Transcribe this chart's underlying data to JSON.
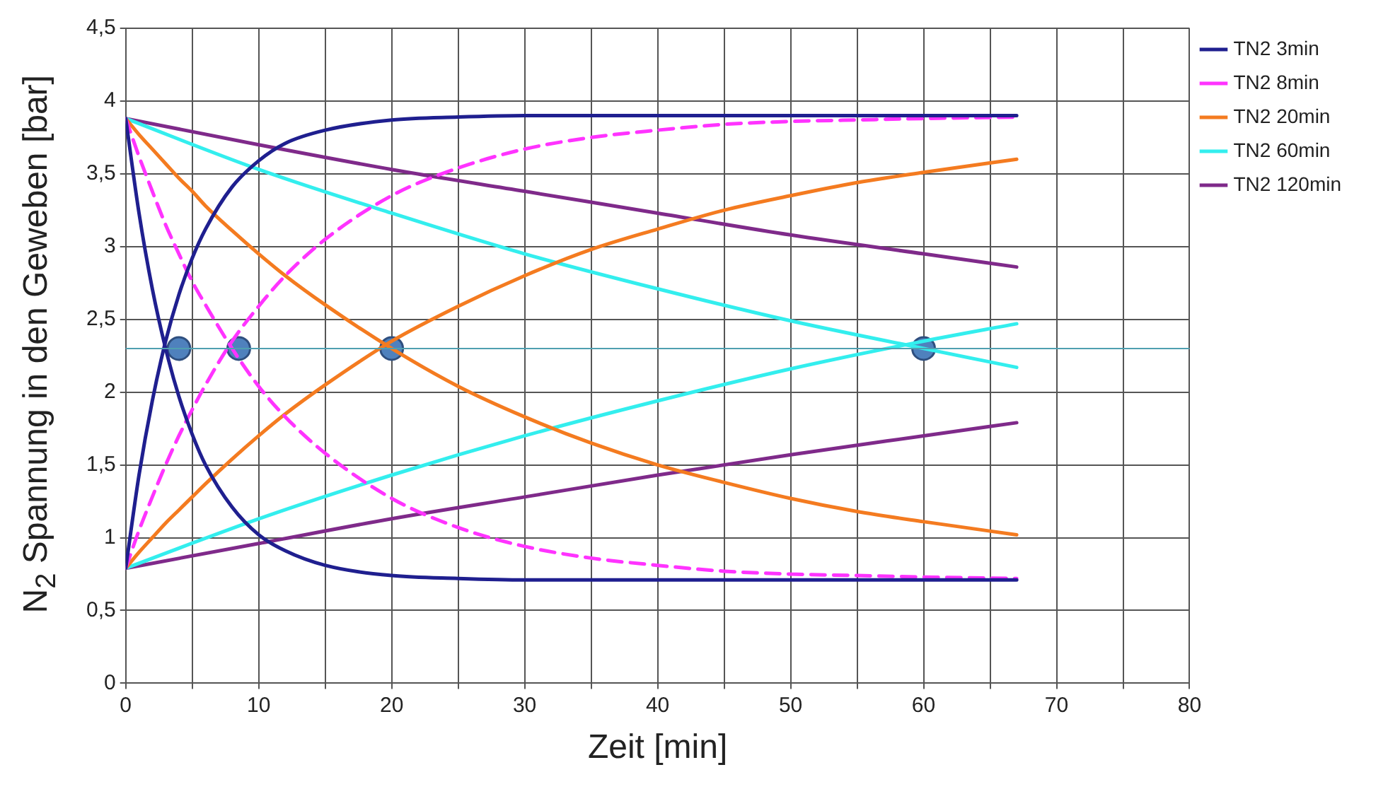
{
  "chart_data": {
    "type": "line",
    "xlabel": "Zeit [min]",
    "ylabel": "N$_{2}$ Spannung in den Geweben [bar]",
    "xlim": [
      0,
      80
    ],
    "xticks": [
      0,
      {
        "value": 5,
        "label": null
      },
      10,
      {
        "value": 15,
        "label": null
      },
      20,
      {
        "value": 25,
        "label": null
      },
      30,
      {
        "value": 35,
        "label": null
      },
      40,
      {
        "value": 45,
        "label": null
      },
      50,
      {
        "value": 55,
        "label": null
      },
      60,
      {
        "value": 65,
        "label": null
      },
      70,
      {
        "value": 75,
        "label": null
      },
      80
    ],
    "ylim": [
      0,
      4.5
    ],
    "yticks": [
      0,
      {
        "value": 0.5,
        "label": "0,5"
      },
      1,
      {
        "value": 1.5,
        "label": "1,5"
      },
      2,
      {
        "value": 2.5,
        "label": "2,5"
      },
      3,
      {
        "value": 3.5,
        "label": "3,5"
      },
      4,
      {
        "value": 4.5,
        "label": "4,5"
      }
    ],
    "grid": true,
    "legend": "top right",
    "marker": "none",
    "line_style": "solid",
    "ref_lines": [
      {
        "axis": "y",
        "value": 2.3,
        "color": "#4f9fb0"
      }
    ],
    "series": [
      {
        "name": "TN2 3min",
        "color": "#1f1f8f",
        "x": [
          0,
          1,
          2,
          3,
          4,
          5,
          6,
          8,
          10,
          12,
          15,
          20,
          25,
          30,
          40,
          50,
          60,
          67
        ],
        "values": [
          0.79,
          1.43,
          1.94,
          2.35,
          2.67,
          2.92,
          3.12,
          3.41,
          3.59,
          3.71,
          3.8,
          3.87,
          3.89,
          3.9,
          3.9,
          3.9,
          3.9,
          3.9
        ]
      },
      {
        "color": "#1f1f8f",
        "x": [
          0,
          1,
          2,
          3,
          4,
          5,
          6,
          8,
          10,
          12,
          15,
          20,
          25,
          30,
          40,
          50,
          60,
          67
        ],
        "values": [
          3.88,
          3.23,
          2.71,
          2.3,
          1.97,
          1.71,
          1.5,
          1.21,
          1.02,
          0.91,
          0.81,
          0.74,
          0.72,
          0.71,
          0.71,
          0.71,
          0.71,
          0.71
        ]
      },
      {
        "name": "TN2 8min",
        "color": "#ff33ff",
        "line_style": "dashed",
        "x": [
          0,
          1,
          2,
          3,
          4,
          5,
          6,
          8,
          10,
          12,
          15,
          20,
          25,
          30,
          35,
          40,
          45,
          50,
          55,
          60,
          67
        ],
        "values": [
          0.79,
          1.05,
          1.28,
          1.5,
          1.7,
          1.88,
          2.05,
          2.35,
          2.59,
          2.8,
          3.05,
          3.35,
          3.54,
          3.67,
          3.75,
          3.8,
          3.84,
          3.86,
          3.87,
          3.88,
          3.89
        ]
      },
      {
        "color": "#ff33ff",
        "line_style": "dashed",
        "x": [
          0,
          1,
          2,
          3,
          4,
          5,
          6,
          8,
          10,
          12,
          15,
          20,
          25,
          30,
          35,
          40,
          45,
          50,
          55,
          60,
          67
        ],
        "values": [
          3.88,
          3.62,
          3.38,
          3.15,
          2.95,
          2.76,
          2.6,
          2.3,
          2.04,
          1.83,
          1.58,
          1.27,
          1.07,
          0.94,
          0.86,
          0.81,
          0.77,
          0.75,
          0.74,
          0.73,
          0.72
        ]
      },
      {
        "name": "TN2 20min",
        "color": "#f47b20",
        "x": [
          0,
          1,
          2,
          3,
          4,
          5,
          6,
          8,
          10,
          12,
          15,
          20,
          25,
          30,
          35,
          40,
          45,
          50,
          55,
          60,
          67
        ],
        "values": [
          0.79,
          0.9,
          1.0,
          1.1,
          1.19,
          1.28,
          1.37,
          1.54,
          1.7,
          1.85,
          2.05,
          2.35,
          2.59,
          2.8,
          2.98,
          3.12,
          3.25,
          3.35,
          3.44,
          3.51,
          3.6
        ]
      },
      {
        "color": "#f47b20",
        "x": [
          0,
          1,
          2,
          3,
          4,
          5,
          6,
          8,
          10,
          12,
          15,
          20,
          25,
          30,
          35,
          40,
          45,
          50,
          55,
          60,
          67
        ],
        "values": [
          3.88,
          3.77,
          3.67,
          3.57,
          3.47,
          3.38,
          3.28,
          3.11,
          2.95,
          2.8,
          2.6,
          2.3,
          2.04,
          1.83,
          1.65,
          1.5,
          1.38,
          1.27,
          1.18,
          1.11,
          1.02
        ]
      },
      {
        "name": "TN2 60min",
        "color": "#33eeee",
        "x": [
          0,
          10,
          20,
          30,
          40,
          50,
          60,
          67
        ],
        "values": [
          0.79,
          1.13,
          1.43,
          1.7,
          1.94,
          2.16,
          2.35,
          2.47
        ]
      },
      {
        "color": "#33eeee",
        "x": [
          0,
          10,
          20,
          30,
          40,
          50,
          60,
          67
        ],
        "values": [
          3.88,
          3.53,
          3.23,
          2.95,
          2.71,
          2.49,
          2.3,
          2.17
        ]
      },
      {
        "name": "TN2 120min",
        "color": "#7f2a8a",
        "x": [
          0,
          10,
          20,
          30,
          40,
          50,
          60,
          67
        ],
        "values": [
          0.79,
          0.96,
          1.13,
          1.28,
          1.43,
          1.57,
          1.7,
          1.79
        ]
      },
      {
        "color": "#7f2a8a",
        "x": [
          0,
          10,
          20,
          30,
          40,
          50,
          60,
          67
        ],
        "values": [
          3.88,
          3.7,
          3.53,
          3.38,
          3.23,
          3.08,
          2.95,
          2.86
        ]
      },
      {
        "type": "scatter",
        "marker": "circle",
        "color": "#4f81bd",
        "x": [
          4,
          8.5,
          20,
          60
        ],
        "values": [
          2.3,
          2.3,
          2.3,
          2.3
        ]
      }
    ]
  }
}
